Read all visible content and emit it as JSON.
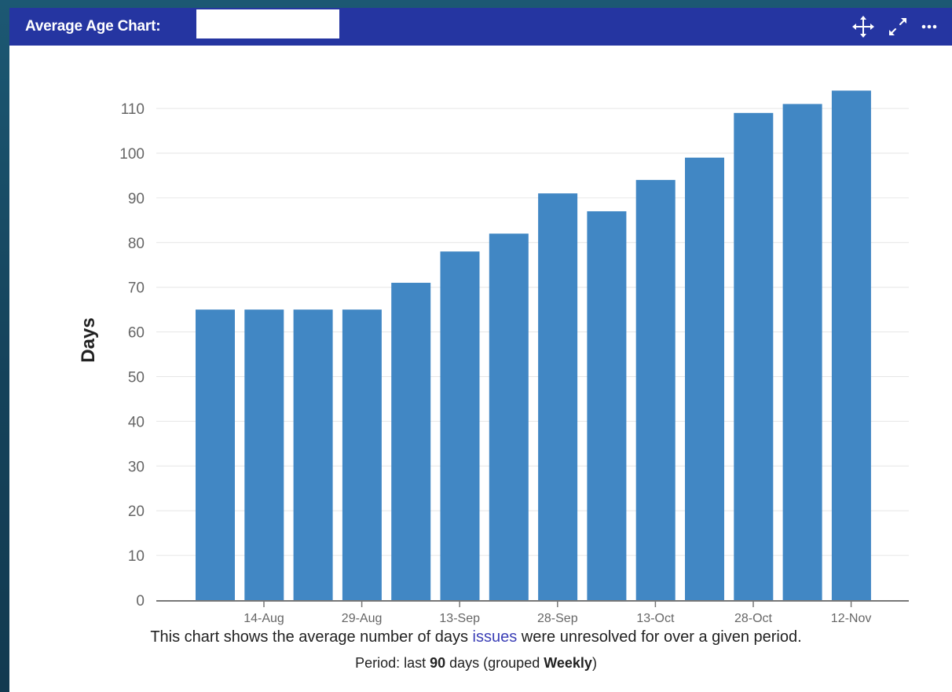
{
  "gadget": {
    "title": "Average Age Chart:",
    "title_field_value": "",
    "icons": [
      "move-icon",
      "expand-icon",
      "more-icon"
    ]
  },
  "colors": {
    "header": "#2535a1",
    "bar": "#4187c4",
    "link": "#3b3fb6"
  },
  "chart_data": {
    "type": "bar",
    "ylabel": "Days",
    "xlabel": "",
    "ylim": [
      0,
      110
    ],
    "yticks": [
      0,
      10,
      20,
      30,
      40,
      50,
      60,
      70,
      80,
      90,
      100,
      110
    ],
    "values": [
      65,
      65,
      65,
      65,
      71,
      78,
      82,
      91,
      87,
      94,
      99,
      109,
      111,
      114
    ],
    "xtick_labels": [
      "14-Aug",
      "29-Aug",
      "13-Sep",
      "28-Sep",
      "13-Oct",
      "28-Oct",
      "12-Nov"
    ],
    "grid": true
  },
  "description": {
    "before": "This chart shows the average number of days ",
    "link": "issues",
    "after": " were unresolved for over a given period."
  },
  "period": {
    "before": "Period: last ",
    "days": "90",
    "middle": " days (grouped ",
    "grouping": "Weekly",
    "after": ")"
  }
}
